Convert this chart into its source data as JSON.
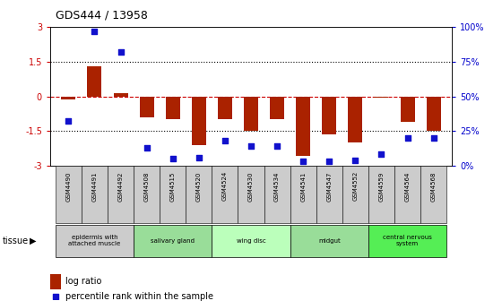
{
  "title": "GDS444 / 13958",
  "samples": [
    "GSM4490",
    "GSM4491",
    "GSM4492",
    "GSM4508",
    "GSM4515",
    "GSM4520",
    "GSM4524",
    "GSM4530",
    "GSM4534",
    "GSM4541",
    "GSM4547",
    "GSM4552",
    "GSM4559",
    "GSM4564",
    "GSM4568"
  ],
  "log_ratio": [
    -0.15,
    1.3,
    0.15,
    -0.9,
    -1.0,
    -2.1,
    -1.0,
    -1.5,
    -1.0,
    -2.6,
    -1.65,
    -2.0,
    -0.05,
    -1.1,
    -1.5
  ],
  "percentile": [
    32,
    97,
    82,
    13,
    5,
    6,
    18,
    14,
    14,
    3,
    3,
    4,
    8,
    20,
    20
  ],
  "bar_color": "#aa2200",
  "dot_color": "#1111cc",
  "tissues": [
    {
      "label": "epidermis with\nattached muscle",
      "start": 0,
      "end": 2,
      "color": "#cccccc"
    },
    {
      "label": "salivary gland",
      "start": 3,
      "end": 5,
      "color": "#99dd99"
    },
    {
      "label": "wing disc",
      "start": 6,
      "end": 8,
      "color": "#bbffbb"
    },
    {
      "label": "midgut",
      "start": 9,
      "end": 11,
      "color": "#99dd99"
    },
    {
      "label": "central nervous\nsystem",
      "start": 12,
      "end": 14,
      "color": "#55ee55"
    }
  ],
  "ylim": [
    -3,
    3
  ],
  "yticks_left": [
    -3,
    -1.5,
    0,
    1.5,
    3
  ],
  "yticks_right": [
    0,
    25,
    50,
    75,
    100
  ],
  "ylabel_left_color": "#cc0000",
  "ylabel_right_color": "#0000cc",
  "background_color": "#ffffff",
  "dotted_line_color": "#000000",
  "zero_line_color": "#cc0000",
  "legend_log_ratio": "log ratio",
  "legend_percentile": "percentile rank within the sample",
  "sample_box_color": "#cccccc"
}
